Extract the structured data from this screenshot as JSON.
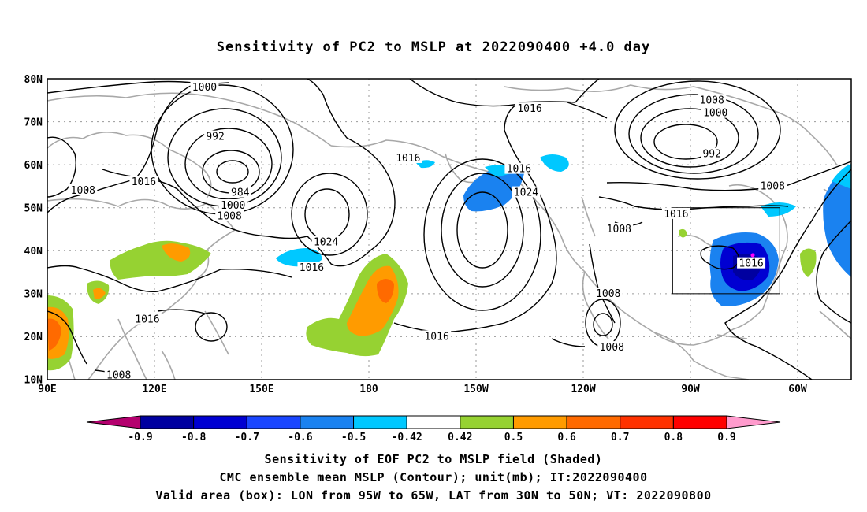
{
  "title": "Sensitivity of PC2 to MSLP at 2022090400 +4.0 day",
  "lat_labels": [
    "80N",
    "70N",
    "60N",
    "50N",
    "40N",
    "30N",
    "20N",
    "10N"
  ],
  "lon_labels": [
    "90E",
    "120E",
    "150E",
    "180",
    "150W",
    "120W",
    "90W",
    "60W"
  ],
  "contour_labels": [
    {
      "text": "1000",
      "lon": 134,
      "lat": 78
    },
    {
      "text": "992",
      "lon": 137,
      "lat": 66.5
    },
    {
      "text": "984",
      "lon": 144,
      "lat": 53.5
    },
    {
      "text": "1000",
      "lon": 142,
      "lat": 50.5
    },
    {
      "text": "1008",
      "lon": 141,
      "lat": 48
    },
    {
      "text": "1016",
      "lon": 117,
      "lat": 56
    },
    {
      "text": "1008",
      "lon": 100,
      "lat": 54
    },
    {
      "text": "1016",
      "lon": 191,
      "lat": 61.5
    },
    {
      "text": "1016",
      "lon": 225,
      "lat": 73
    },
    {
      "text": "1016",
      "lon": 222,
      "lat": 59
    },
    {
      "text": "1024",
      "lon": 224,
      "lat": 53.5
    },
    {
      "text": "1024",
      "lon": 168,
      "lat": 42
    },
    {
      "text": "1016",
      "lon": 164,
      "lat": 36
    },
    {
      "text": "1016",
      "lon": 118,
      "lat": 24
    },
    {
      "text": "1008",
      "lon": 110,
      "lat": 11
    },
    {
      "text": "1016",
      "lon": 199,
      "lat": 20
    },
    {
      "text": "1008",
      "lon": 250,
      "lat": 45
    },
    {
      "text": "1008",
      "lon": 247,
      "lat": 30
    },
    {
      "text": "1008",
      "lon": 248,
      "lat": 17.5
    },
    {
      "text": "1008",
      "lon": 276,
      "lat": 75
    },
    {
      "text": "1000",
      "lon": 277,
      "lat": 72
    },
    {
      "text": "992",
      "lon": 276,
      "lat": 62.5
    },
    {
      "text": "1008",
      "lon": 293,
      "lat": 55
    },
    {
      "text": "1016",
      "lon": 266,
      "lat": 48.5
    },
    {
      "text": "1016",
      "lon": 287,
      "lat": 37
    }
  ],
  "valid_box": {
    "lon_min": 265,
    "lon_max": 295,
    "lat_min": 30,
    "lat_max": 50
  },
  "colorbar": {
    "labels": [
      "-0.9",
      "-0.8",
      "-0.7",
      "-0.6",
      "-0.5",
      "-0.42",
      "0.42",
      "0.5",
      "0.6",
      "0.7",
      "0.8",
      "0.9"
    ],
    "colors": [
      "#b4006e",
      "#0000a0",
      "#0000d2",
      "#1a46ff",
      "#1a82f0",
      "#00c8ff",
      "#ffffff",
      "#96d232",
      "#ff9b00",
      "#ff6a00",
      "#ff3200",
      "#ff0000",
      "#ff9bcd"
    ]
  },
  "captions": [
    "Sensitivity of EOF PC2 to MSLP field (Shaded)",
    "CMC ensemble mean MSLP (Contour); unit(mb); IT:2022090400",
    "Valid area (box): LON from 95W to 65W, LAT from 30N to 50N; VT: 2022090800"
  ]
}
